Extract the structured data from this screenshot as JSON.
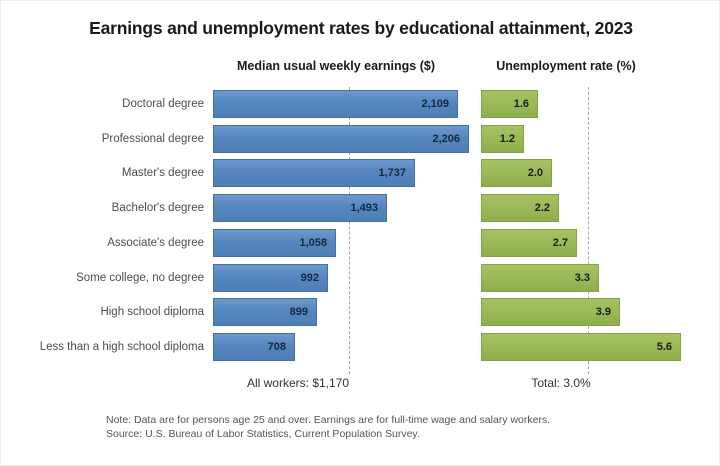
{
  "title": "Earnings and unemployment rates by educational attainment, 2023",
  "chart_data": {
    "type": "bar",
    "orientation": "horizontal",
    "grid": false,
    "categories": [
      "Doctoral degree",
      "Professional degree",
      "Master's degree",
      "Bachelor's degree",
      "Associate's degree",
      "Some college, no degree",
      "High school diploma",
      "Less than a high school diploma"
    ],
    "series": [
      {
        "name": "Median usual weekly earnings ($)",
        "values": [
          2109,
          2206,
          1737,
          1493,
          1058,
          992,
          899,
          708
        ],
        "labels": [
          "2,109",
          "2,206",
          "1,737",
          "1,493",
          "1,058",
          "992",
          "899",
          "708"
        ],
        "color": "#5586bf",
        "reference": {
          "label": "All workers: $1,170",
          "value": 1170
        }
      },
      {
        "name": "Unemployment rate (%)",
        "values": [
          1.6,
          1.2,
          2.0,
          2.2,
          2.7,
          3.3,
          3.9,
          5.6
        ],
        "labels": [
          "1.6",
          "1.2",
          "2.0",
          "2.2",
          "2.7",
          "3.3",
          "3.9",
          "5.6"
        ],
        "color": "#9bb958",
        "reference": {
          "label": "Total: 3.0%",
          "value": 3.0
        }
      }
    ]
  },
  "notes": {
    "note": "Note: Data are for persons age 25 and over. Earnings are for full-time wage and salary workers.",
    "source": "Source: U.S. Bureau of Labor Statistics, Current Population Survey."
  }
}
